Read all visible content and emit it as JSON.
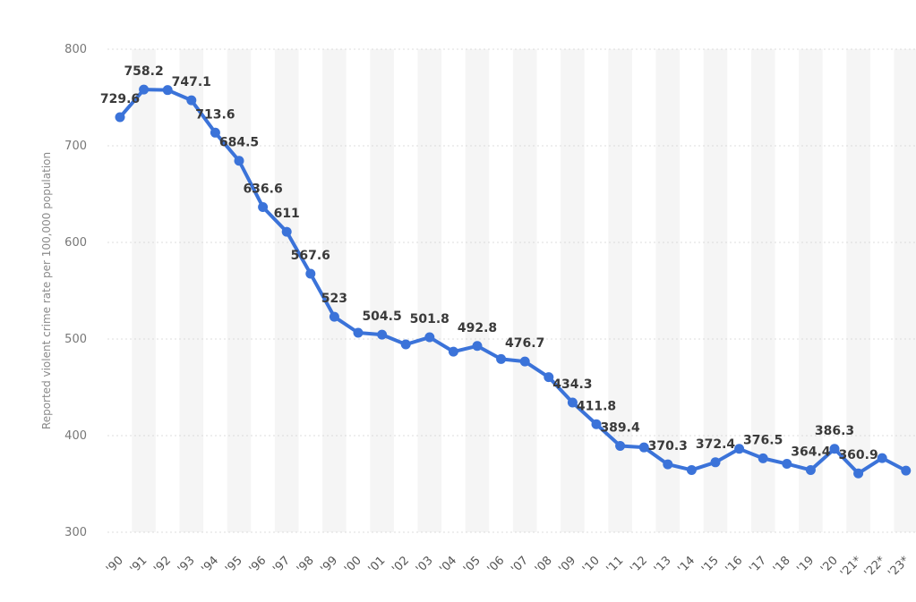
{
  "chart_data": {
    "type": "line",
    "ylabel": "Reported violent crime rate per 100,000 population",
    "xlabel": "",
    "ylim": [
      300,
      800
    ],
    "yticks": [
      300,
      400,
      500,
      600,
      700,
      800
    ],
    "grid": true,
    "color": "#3b73d9",
    "categories": [
      "'90",
      "'91",
      "'92",
      "'93",
      "'94",
      "'95",
      "'96",
      "'97",
      "'98",
      "'99",
      "'00",
      "'01",
      "'02",
      "'03",
      "'04",
      "'05",
      "'06",
      "'07",
      "'08",
      "'09",
      "'10",
      "'11",
      "'12",
      "'13",
      "'14",
      "'15",
      "'16",
      "'17",
      "'18",
      "'19",
      "'20",
      "'21*",
      "'22*",
      "'23*"
    ],
    "values": [
      729.6,
      758.2,
      757.7,
      747.1,
      713.6,
      684.5,
      636.6,
      611,
      567.6,
      523,
      506.5,
      504.5,
      494.4,
      501.8,
      486.9,
      492.8,
      479.3,
      476.7,
      460.5,
      434.3,
      411.8,
      389.4,
      387.8,
      370.3,
      364.4,
      372.4,
      386.3,
      376.5,
      370.8,
      364.4,
      386.3,
      360.9,
      376.7,
      363.8
    ],
    "labels": [
      {
        "index": 0,
        "text": "729.6"
      },
      {
        "index": 1,
        "text": "758.2"
      },
      {
        "index": 3,
        "text": "747.1"
      },
      {
        "index": 4,
        "text": "713.6"
      },
      {
        "index": 5,
        "text": "684.5"
      },
      {
        "index": 6,
        "text": "636.6"
      },
      {
        "index": 7,
        "text": "611"
      },
      {
        "index": 8,
        "text": "567.6"
      },
      {
        "index": 9,
        "text": "523"
      },
      {
        "index": 11,
        "text": "504.5"
      },
      {
        "index": 13,
        "text": "501.8"
      },
      {
        "index": 15,
        "text": "492.8"
      },
      {
        "index": 17,
        "text": "476.7"
      },
      {
        "index": 19,
        "text": "434.3"
      },
      {
        "index": 20,
        "text": "411.8"
      },
      {
        "index": 21,
        "text": "389.4"
      },
      {
        "index": 23,
        "text": "370.3"
      },
      {
        "index": 25,
        "text": "372.4"
      },
      {
        "index": 27,
        "text": "376.5"
      },
      {
        "index": 29,
        "text": "364.4"
      },
      {
        "index": 30,
        "text": "386.3"
      },
      {
        "index": 31,
        "text": "360.9"
      }
    ]
  }
}
